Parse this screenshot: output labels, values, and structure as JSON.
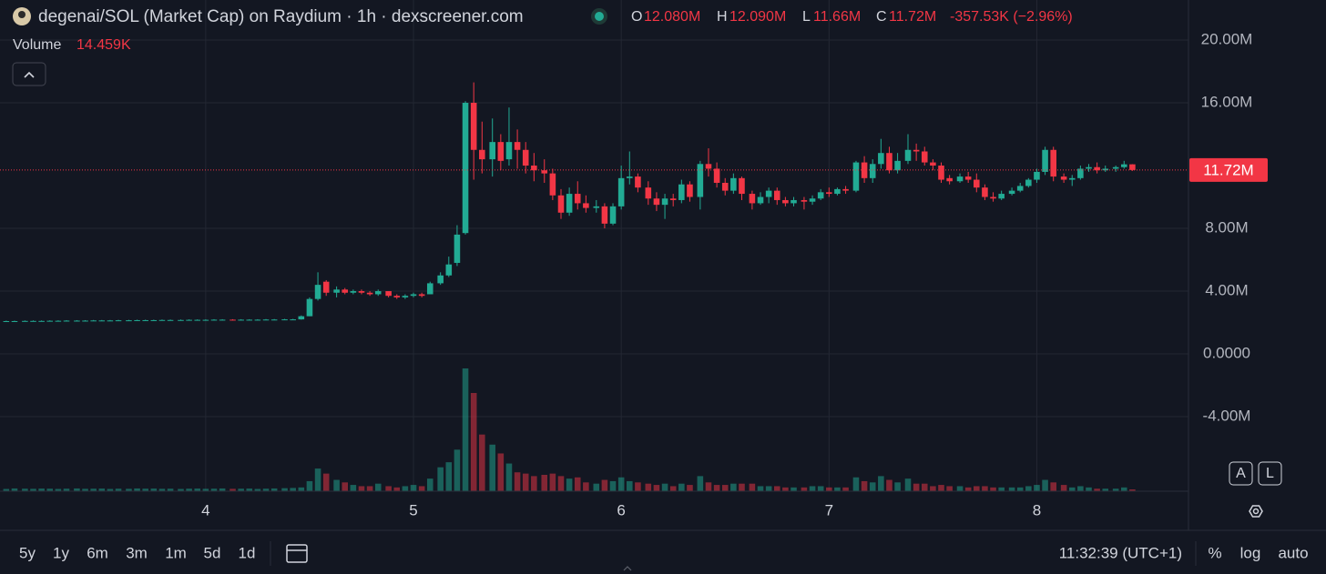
{
  "chart_data": {
    "type": "candlestick",
    "title": "degenai/SOL (Market Cap) on Raydium · 1h · dexscreener.com",
    "ohlc_header": [
      {
        "key": "O",
        "label": "12.080M"
      },
      {
        "key": "H",
        "label": "12.090M"
      },
      {
        "key": "L",
        "label": "11.66M"
      },
      {
        "key": "C",
        "label": "11.72M"
      }
    ],
    "change_label": "-357.53K (−2.96%)",
    "up_color": "#22ab94",
    "down_color": "#f23645",
    "x": [
      3.04,
      3.08,
      3.13,
      3.17,
      3.21,
      3.25,
      3.29,
      3.33,
      3.38,
      3.42,
      3.46,
      3.5,
      3.54,
      3.58,
      3.63,
      3.67,
      3.71,
      3.75,
      3.79,
      3.83,
      3.88,
      3.92,
      3.96,
      4,
      4.04,
      4.08,
      4.13,
      4.17,
      4.21,
      4.25,
      4.29,
      4.33,
      4.38,
      4.42,
      4.46,
      4.5,
      4.54,
      4.58,
      4.63,
      4.67,
      4.71,
      4.75,
      4.79,
      4.83,
      4.88,
      4.92,
      4.96,
      5,
      5.04,
      5.08,
      5.13,
      5.17,
      5.21,
      5.25,
      5.29,
      5.33,
      5.38,
      5.42,
      5.46,
      5.5,
      5.54,
      5.58,
      5.63,
      5.67,
      5.71,
      5.75,
      5.79,
      5.83,
      5.88,
      5.92,
      5.96,
      6,
      6.04,
      6.08,
      6.13,
      6.17,
      6.21,
      6.25,
      6.29,
      6.33,
      6.38,
      6.42,
      6.46,
      6.5,
      6.54,
      6.58,
      6.63,
      6.67,
      6.71,
      6.75,
      6.79,
      6.83,
      6.88,
      6.92,
      6.96,
      7,
      7.04,
      7.08,
      7.13,
      7.17,
      7.21,
      7.25,
      7.29,
      7.33,
      7.38,
      7.42,
      7.46,
      7.5,
      7.54,
      7.58,
      7.63,
      7.67,
      7.71,
      7.75,
      7.79,
      7.83,
      7.88,
      7.92,
      7.96,
      8,
      8.04,
      8.08,
      8.13,
      8.17,
      8.21,
      8.25,
      8.29,
      8.33,
      8.38,
      8.42,
      8.46
    ],
    "open": [
      2.08,
      2.09,
      2.09,
      2.1,
      2.1,
      2.1,
      2.11,
      2.11,
      2.12,
      2.12,
      2.12,
      2.13,
      2.13,
      2.13,
      2.14,
      2.14,
      2.15,
      2.15,
      2.15,
      2.16,
      2.16,
      2.16,
      2.17,
      2.17,
      2.17,
      2.18,
      2.18,
      2.17,
      2.18,
      2.18,
      2.18,
      2.19,
      2.19,
      2.2,
      2.2,
      2.4,
      3.5,
      4.6,
      3.9,
      4.1,
      3.9,
      4.0,
      3.9,
      3.8,
      4.0,
      3.7,
      3.6,
      3.7,
      3.8,
      3.8,
      4.5,
      5.0,
      5.8,
      7.7,
      16.0,
      13.0,
      12.4,
      13.5,
      12.4,
      13.5,
      13.0,
      12.0,
      11.7,
      11.5,
      10.1,
      9.0,
      10.2,
      9.6,
      9.3,
      9.4,
      8.3,
      9.4,
      11.2,
      11.3,
      10.6,
      9.9,
      9.5,
      9.9,
      9.8,
      10.8,
      10.0,
      12.1,
      11.8,
      10.9,
      10.4,
      11.2,
      10.2,
      9.6,
      10.0,
      10.4,
      9.8,
      9.6,
      9.8,
      9.7,
      9.9,
      10.3,
      10.2,
      10.5,
      10.4,
      12.2,
      11.2,
      12.1,
      12.8,
      11.7,
      12.3,
      13.0,
      12.9,
      12.2,
      12.0,
      11.2,
      11.0,
      11.3,
      11.1,
      10.6,
      10.0,
      9.9,
      10.2,
      10.4,
      10.7,
      11.1,
      11.6,
      13.0,
      11.3,
      11.1,
      11.2,
      11.8,
      11.9,
      11.7,
      11.8,
      11.9,
      12.08
    ],
    "high": [
      2.12,
      2.12,
      2.13,
      2.13,
      2.13,
      2.14,
      2.14,
      2.15,
      2.15,
      2.15,
      2.16,
      2.16,
      2.16,
      2.17,
      2.17,
      2.18,
      2.18,
      2.18,
      2.19,
      2.19,
      2.19,
      2.2,
      2.2,
      2.2,
      2.21,
      2.21,
      2.21,
      2.21,
      2.21,
      2.21,
      2.22,
      2.22,
      2.23,
      2.23,
      2.45,
      3.6,
      5.2,
      4.7,
      4.3,
      4.2,
      4.1,
      4.1,
      4.0,
      4.1,
      4.0,
      3.8,
      3.8,
      3.9,
      3.9,
      4.6,
      5.2,
      6.2,
      8.2,
      16.1,
      17.3,
      14.8,
      15.0,
      14.0,
      15.7,
      14.3,
      13.5,
      12.8,
      12.4,
      11.8,
      10.5,
      10.6,
      11.0,
      10.1,
      9.8,
      9.6,
      9.6,
      12.0,
      12.9,
      11.5,
      11.0,
      10.3,
      10.2,
      10.2,
      11.1,
      11.0,
      12.3,
      13.1,
      12.2,
      11.2,
      11.5,
      11.3,
      10.4,
      10.3,
      10.6,
      10.6,
      10.0,
      10.0,
      10.0,
      10.1,
      10.5,
      10.6,
      10.6,
      10.7,
      12.3,
      12.6,
      12.4,
      13.7,
      13.2,
      12.8,
      14.0,
      13.4,
      13.2,
      12.4,
      12.2,
      11.4,
      11.5,
      11.6,
      11.5,
      10.8,
      10.3,
      10.4,
      10.6,
      10.9,
      11.2,
      11.8,
      13.2,
      13.2,
      11.5,
      11.4,
      12.0,
      12.1,
      12.2,
      12.0,
      12.0,
      12.3,
      12.09
    ],
    "low": [
      2.05,
      2.06,
      2.06,
      2.07,
      2.07,
      2.07,
      2.08,
      2.08,
      2.09,
      2.09,
      2.09,
      2.1,
      2.1,
      2.1,
      2.11,
      2.11,
      2.12,
      2.12,
      2.12,
      2.13,
      2.13,
      2.13,
      2.14,
      2.14,
      2.14,
      2.15,
      2.14,
      2.14,
      2.15,
      2.15,
      2.15,
      2.16,
      2.16,
      2.17,
      2.18,
      2.4,
      3.4,
      3.7,
      3.6,
      3.8,
      3.8,
      3.8,
      3.7,
      3.7,
      3.6,
      3.5,
      3.5,
      3.6,
      3.6,
      3.8,
      4.4,
      4.9,
      5.6,
      7.6,
      11.1,
      11.5,
      11.3,
      11.7,
      12.0,
      11.8,
      11.5,
      11.0,
      10.9,
      9.8,
      8.6,
      8.8,
      9.2,
      9.0,
      9.0,
      8.0,
      8.2,
      9.2,
      10.8,
      10.3,
      9.5,
      9.1,
      8.6,
      9.4,
      9.6,
      9.7,
      9.2,
      11.3,
      10.6,
      10.1,
      10.2,
      9.8,
      9.2,
      9.5,
      9.6,
      9.5,
      9.4,
      9.4,
      9.2,
      9.5,
      9.8,
      10.0,
      10.1,
      10.2,
      10.3,
      10.9,
      10.9,
      11.8,
      11.5,
      11.5,
      12.1,
      12.3,
      12.0,
      11.7,
      10.9,
      10.8,
      10.9,
      10.9,
      10.3,
      9.8,
      9.7,
      9.8,
      10.1,
      10.3,
      10.6,
      10.9,
      11.4,
      11.0,
      10.9,
      10.7,
      11.1,
      11.6,
      11.5,
      11.6,
      11.6,
      11.8,
      11.66
    ],
    "close": [
      2.09,
      2.09,
      2.1,
      2.1,
      2.1,
      2.11,
      2.11,
      2.12,
      2.12,
      2.12,
      2.13,
      2.13,
      2.13,
      2.14,
      2.14,
      2.15,
      2.15,
      2.15,
      2.16,
      2.16,
      2.16,
      2.17,
      2.17,
      2.17,
      2.18,
      2.18,
      2.17,
      2.18,
      2.18,
      2.18,
      2.19,
      2.19,
      2.2,
      2.2,
      2.4,
      3.5,
      4.4,
      3.9,
      4.1,
      3.9,
      4.0,
      3.9,
      3.8,
      4.0,
      3.7,
      3.6,
      3.7,
      3.8,
      3.7,
      4.5,
      5.0,
      5.7,
      7.6,
      16.0,
      13.0,
      12.4,
      13.5,
      12.3,
      13.5,
      13.0,
      12.0,
      11.7,
      11.5,
      10.1,
      9.0,
      10.2,
      9.6,
      9.3,
      9.4,
      8.3,
      9.4,
      11.2,
      11.3,
      10.6,
      9.9,
      9.5,
      9.9,
      9.8,
      10.8,
      10.0,
      12.1,
      11.8,
      10.9,
      10.4,
      11.2,
      10.2,
      9.6,
      10.0,
      10.4,
      9.8,
      9.6,
      9.8,
      9.7,
      9.9,
      10.3,
      10.2,
      10.5,
      10.4,
      12.2,
      11.2,
      12.1,
      12.8,
      11.7,
      12.3,
      13.0,
      12.9,
      12.2,
      12.0,
      11.1,
      11.0,
      11.3,
      11.1,
      10.6,
      10.0,
      9.9,
      10.2,
      10.4,
      10.7,
      11.1,
      11.6,
      13.0,
      11.3,
      11.1,
      11.2,
      11.8,
      11.9,
      11.7,
      11.8,
      11.9,
      12.08,
      11.72
    ],
    "volume": {
      "name": "Volume",
      "last_label": "14.459K",
      "values": [
        18,
        22,
        20,
        19,
        21,
        20,
        18,
        20,
        22,
        19,
        20,
        21,
        18,
        20,
        19,
        22,
        20,
        21,
        19,
        20,
        18,
        20,
        21,
        19,
        20,
        22,
        19,
        20,
        21,
        18,
        20,
        22,
        24,
        26,
        30,
        80,
        180,
        140,
        90,
        70,
        50,
        40,
        40,
        60,
        40,
        30,
        40,
        50,
        40,
        100,
        190,
        230,
        330,
        975,
        780,
        450,
        370,
        300,
        220,
        150,
        140,
        120,
        130,
        140,
        120,
        100,
        110,
        70,
        60,
        90,
        80,
        110,
        80,
        70,
        60,
        50,
        60,
        40,
        60,
        50,
        120,
        70,
        50,
        50,
        60,
        60,
        60,
        40,
        40,
        40,
        30,
        30,
        30,
        40,
        40,
        30,
        30,
        30,
        110,
        80,
        70,
        120,
        90,
        70,
        100,
        60,
        60,
        40,
        50,
        40,
        40,
        30,
        40,
        40,
        30,
        30,
        30,
        30,
        40,
        50,
        90,
        70,
        50,
        30,
        40,
        30,
        20,
        20,
        20,
        30,
        14.459
      ]
    },
    "last_price": {
      "value": 11.72,
      "label": "11.72M"
    },
    "xlim": [
      3.01,
      8.73
    ],
    "xticks": [
      4,
      5,
      6,
      7,
      8
    ],
    "ylim": [
      -8.75,
      22.55
    ],
    "yticks": [
      {
        "value": 20,
        "label": "20.00M"
      },
      {
        "value": 16,
        "label": "16.00M"
      },
      {
        "value": 8,
        "label": "8.00M"
      },
      {
        "value": 4,
        "label": "4.00M"
      },
      {
        "value": 0,
        "label": "0.0000"
      },
      {
        "value": -4,
        "label": "-4.00M"
      }
    ],
    "grid": true,
    "toolbar": {
      "timeframes": [
        "5y",
        "1y",
        "6m",
        "3m",
        "1m",
        "5d",
        "1d"
      ],
      "clock": "11:32:39 (UTC+1)",
      "scale_buttons": [
        "%",
        "log",
        "auto"
      ],
      "price_scale_buttons": [
        "A",
        "L"
      ]
    }
  }
}
